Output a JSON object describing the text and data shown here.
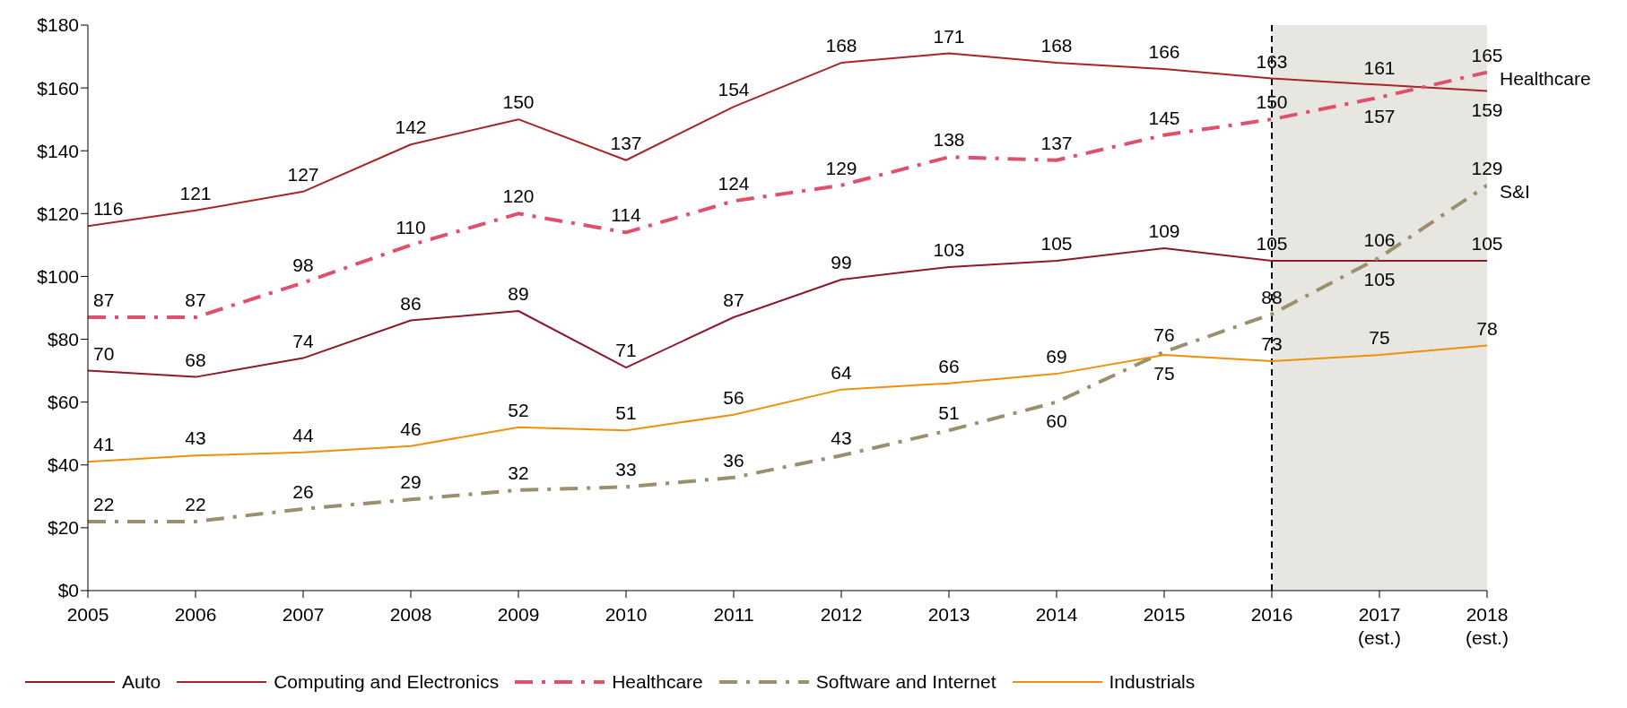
{
  "chart_data": {
    "type": "line",
    "categories": [
      "2005",
      "2006",
      "2007",
      "2008",
      "2009",
      "2010",
      "2011",
      "2012",
      "2013",
      "2014",
      "2015",
      "2016",
      "2017\n(est.)",
      "2018\n(est.)"
    ],
    "series": [
      {
        "name": "Auto",
        "color": "#8b1a2b",
        "line_style": "solid",
        "values": [
          70,
          68,
          74,
          86,
          89,
          71,
          87,
          99,
          103,
          105,
          109,
          105,
          105,
          105
        ]
      },
      {
        "name": "Computing and Electronics",
        "color": "#a82525",
        "line_style": "solid",
        "values": [
          116,
          121,
          127,
          142,
          150,
          137,
          154,
          168,
          171,
          168,
          166,
          163,
          161,
          159
        ]
      },
      {
        "name": "Healthcare",
        "color": "#e0506a",
        "line_style": "dashed",
        "values": [
          87,
          87,
          98,
          110,
          120,
          114,
          124,
          129,
          138,
          137,
          145,
          150,
          157,
          165
        ]
      },
      {
        "name": "Software and Internet",
        "color": "#9c8f70",
        "line_style": "dashed",
        "values": [
          22,
          22,
          26,
          29,
          32,
          33,
          36,
          43,
          51,
          60,
          76,
          88,
          106,
          129
        ]
      },
      {
        "name": "Industrials",
        "color": "#f0900a",
        "line_style": "solid",
        "values": [
          41,
          43,
          44,
          46,
          52,
          51,
          56,
          64,
          66,
          69,
          75,
          73,
          75,
          78
        ]
      }
    ],
    "ylim": [
      0,
      180
    ],
    "yticks": [
      {
        "value": 0,
        "label": "$0"
      },
      {
        "value": 20,
        "label": "$20"
      },
      {
        "value": 40,
        "label": "$40"
      },
      {
        "value": 60,
        "label": "$60"
      },
      {
        "value": 80,
        "label": "$80"
      },
      {
        "value": 100,
        "label": "$100"
      },
      {
        "value": 120,
        "label": "$120"
      },
      {
        "value": 140,
        "label": "$140"
      },
      {
        "value": 160,
        "label": "$160"
      },
      {
        "value": 180,
        "label": "$180"
      }
    ],
    "grid": false,
    "legend": "bottom",
    "data_labels": true,
    "marker": "none",
    "ref_lines": [
      {
        "axis": "x",
        "value": "2016",
        "color": "#000000",
        "line_style": "dashed"
      }
    ],
    "bands": [
      {
        "axis": "x",
        "from": "2016",
        "to": "2018\n(est.)",
        "color": "#e8e6e1"
      }
    ],
    "annotations": [
      {
        "text": "Healthcare",
        "x": "2018\n(est.)",
        "y": 163
      },
      {
        "text": "S&I",
        "x": "2018\n(est.)",
        "y": 127
      }
    ]
  }
}
